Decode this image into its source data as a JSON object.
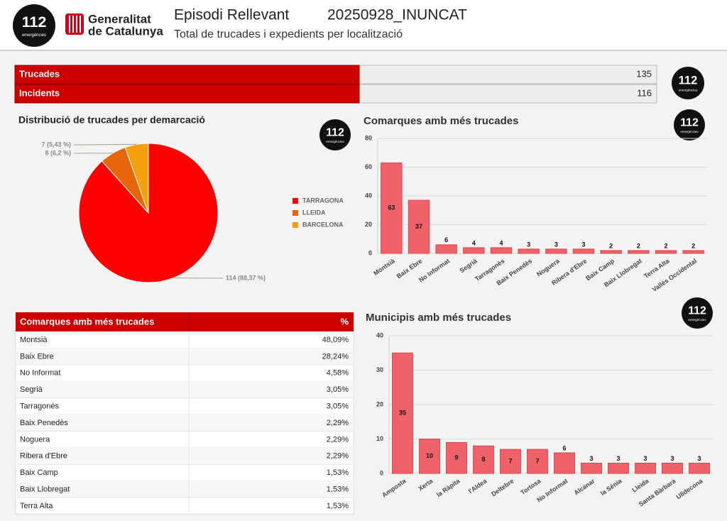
{
  "logo": {
    "number": "112",
    "caption": "emergències"
  },
  "header": {
    "org_line1": "Generalitat",
    "org_line2": "de Catalunya",
    "title": "Episodi Rellevant",
    "code": "20250928_INUNCAT",
    "subtitle": "Total de trucades i expedients per localització"
  },
  "kpis": [
    {
      "label": "Trucades",
      "value": 135
    },
    {
      "label": "Incidents",
      "value": 116
    }
  ],
  "table": {
    "header": [
      "Comarques amb més trucades",
      "%"
    ],
    "rows": [
      [
        "Montsià",
        "48,09%"
      ],
      [
        "Baix Ebre",
        "28,24%"
      ],
      [
        "No Informat",
        "4,58%"
      ],
      [
        "Segrià",
        "3,05%"
      ],
      [
        "Tarragonès",
        "3,05%"
      ],
      [
        "Baix Penedès",
        "2,29%"
      ],
      [
        "Noguera",
        "2,29%"
      ],
      [
        "Ribera d'Ebre",
        "2,29%"
      ],
      [
        "Baix Camp",
        "1,53%"
      ],
      [
        "Baix Llobregat",
        "1,53%"
      ],
      [
        "Terra Alta",
        "1,53%"
      ]
    ]
  },
  "chart_data": [
    {
      "type": "pie",
      "title": "Distribució de trucades per demarcació",
      "categories": [
        "TARRAGONA",
        "LLEIDA",
        "BARCELONA"
      ],
      "values": [
        114,
        8,
        7
      ],
      "value_labels": [
        "114 (88,37 %)",
        "8 (6,2 %)",
        "7 (5,43 %)"
      ],
      "colors": [
        "#ff0000",
        "#e8650a",
        "#f5a00f"
      ],
      "legend": "right"
    },
    {
      "type": "bar",
      "title": "Comarques amb més trucades",
      "categories": [
        "Montsià",
        "Baix Ebre",
        "No Informat",
        "Segrià",
        "Tarragonès",
        "Baix Penedès",
        "Noguera",
        "Ribera d'Ebre",
        "Baix Camp",
        "Baix Llobregat",
        "Terra Alta",
        "Vallès Occidental"
      ],
      "values": [
        63,
        37,
        6,
        4,
        4,
        3,
        3,
        3,
        2,
        2,
        2,
        2
      ],
      "color": "#f0626a",
      "ylim": [
        0,
        80
      ],
      "yticks": [
        0,
        20,
        40,
        60,
        80
      ],
      "grid": true
    },
    {
      "type": "bar",
      "title": "Municipis amb més trucades",
      "categories": [
        "Amposta",
        "Xerta",
        "la Ràpita",
        "l'Aldea",
        "Deltebre",
        "Tortosa",
        "No Informat",
        "Alcanar",
        "la Sénia",
        "Lleida",
        "Santa Bàrbara",
        "Ulldecona"
      ],
      "values": [
        35,
        10,
        9,
        8,
        7,
        7,
        6,
        3,
        3,
        3,
        3,
        3
      ],
      "color": "#f0626a",
      "ylim": [
        0,
        40
      ],
      "yticks": [
        0,
        10,
        20,
        30,
        40
      ],
      "grid": true
    }
  ]
}
